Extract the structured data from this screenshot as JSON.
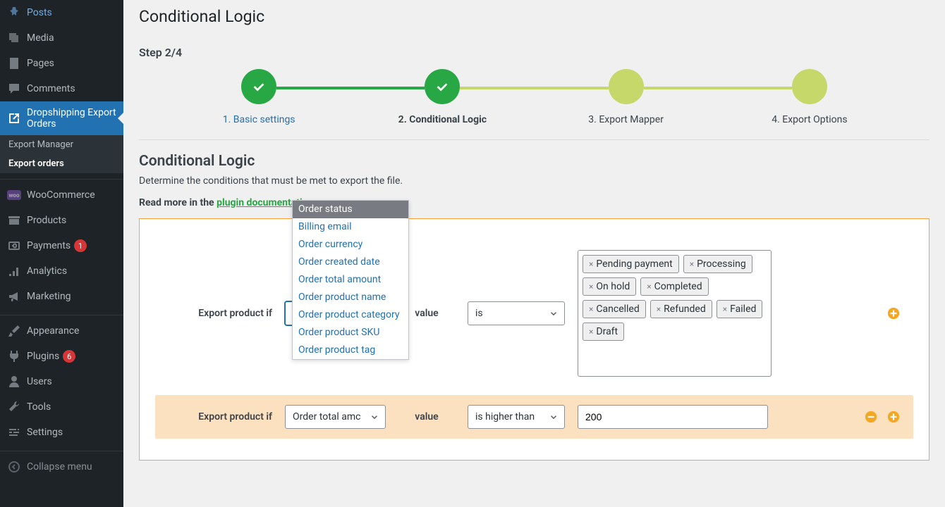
{
  "colors": {
    "sidebar_bg": "#1d2327",
    "sidebar_active_bg": "#2271b1",
    "accent_green": "#28a745",
    "upcoming_green": "#c5d869",
    "orange_border": "#ff9e3d",
    "orange_row_bg": "#fce1c1",
    "orange_icon": "#f5a623",
    "link_blue": "#2271b1",
    "badge_red": "#d63638"
  },
  "sidebar": {
    "items": [
      {
        "label": "Posts",
        "icon": "pin"
      },
      {
        "label": "Media",
        "icon": "media"
      },
      {
        "label": "Pages",
        "icon": "page"
      },
      {
        "label": "Comments",
        "icon": "comment"
      },
      {
        "label": "Dropshipping Export Orders",
        "icon": "external",
        "current": true
      },
      {
        "label": "WooCommerce",
        "icon": "woo"
      },
      {
        "label": "Products",
        "icon": "archive"
      },
      {
        "label": "Payments",
        "icon": "payments",
        "badge": "1"
      },
      {
        "label": "Analytics",
        "icon": "analytics"
      },
      {
        "label": "Marketing",
        "icon": "megaphone"
      },
      {
        "label": "Appearance",
        "icon": "brush"
      },
      {
        "label": "Plugins",
        "icon": "plugin",
        "badge": "6"
      },
      {
        "label": "Users",
        "icon": "user"
      },
      {
        "label": "Tools",
        "icon": "wrench"
      },
      {
        "label": "Settings",
        "icon": "settings"
      },
      {
        "label": "Collapse menu",
        "icon": "collapse"
      }
    ],
    "sub": [
      {
        "label": "Export Manager"
      },
      {
        "label": "Export orders",
        "current": true
      }
    ]
  },
  "page": {
    "title": "Conditional Logic",
    "step_label": "Step 2/4",
    "stepper": [
      {
        "caption": "1. Basic settings",
        "state": "done",
        "link": true
      },
      {
        "caption": "2. Conditional Logic",
        "state": "done",
        "bold": true
      },
      {
        "caption": "3. Export Mapper",
        "state": "upcoming"
      },
      {
        "caption": "4. Export Options",
        "state": "upcoming"
      }
    ],
    "section_title": "Conditional Logic",
    "description": "Determine the conditions that must be met to export the file.",
    "doc_prefix": "Read more in the ",
    "doc_link_text": "plugin documentation →"
  },
  "dropdown": {
    "options": [
      "Order status",
      "Billing email",
      "Order currency",
      "Order created date",
      "Order total amount",
      "Order product name",
      "Order product category",
      "Order product SKU",
      "Order product tag"
    ],
    "selected_index": 0
  },
  "conditions": [
    {
      "label": "Export product if",
      "field": "Order status",
      "value_label": "value",
      "operator": "is",
      "value_type": "tags",
      "tags": [
        "Pending payment",
        "Processing",
        "On hold",
        "Completed",
        "Cancelled",
        "Refunded",
        "Failed",
        "Draft"
      ]
    },
    {
      "label": "Export product if",
      "field": "Order total amount",
      "field_display": "Order total amc",
      "value_label": "value",
      "operator": "is higher than",
      "value_type": "text",
      "value": "200"
    }
  ]
}
